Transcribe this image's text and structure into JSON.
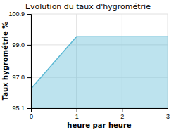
{
  "chart_data": {
    "type": "area",
    "title": "Evolution du taux d'hygrométrie",
    "xlabel": "heure par heure",
    "ylabel": "Taux hygrométrie %",
    "x": [
      0,
      1,
      2,
      3
    ],
    "values": [
      96.3,
      99.5,
      99.5,
      99.5
    ],
    "color": "#5bb8d4",
    "xlim": [
      0,
      3
    ],
    "ylim": [
      95.1,
      100.9
    ],
    "xticks": [
      0,
      1,
      2,
      3
    ],
    "yticks": [
      95.1,
      {
        "value": 97.0,
        "label": "97.0"
      },
      {
        "value": 99.0,
        "label": "99.0"
      },
      100.9
    ],
    "grid": true
  }
}
